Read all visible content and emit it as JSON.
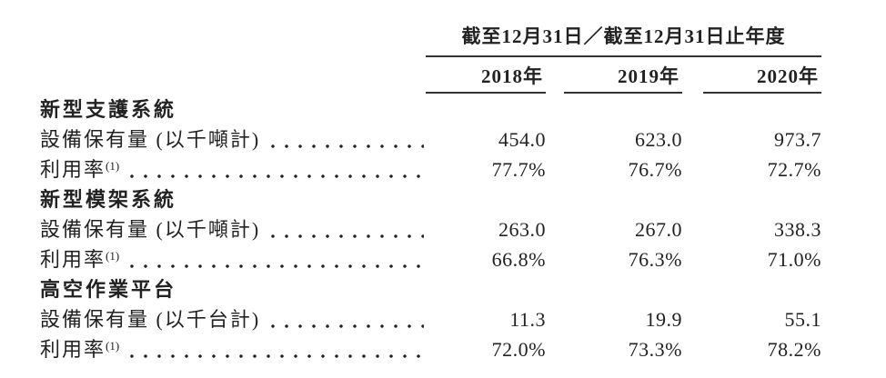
{
  "colors": {
    "ink": "#222222",
    "rule": "#333333",
    "background": "#ffffff"
  },
  "table": {
    "header": {
      "period_label": "截至12月31日／截至12月31日止年度",
      "columns": [
        "2018年",
        "2019年",
        "2020年"
      ]
    },
    "sections": [
      {
        "title": "新型支護系統",
        "rows": [
          {
            "label": "設備保有量 (以千噸計)",
            "sup": "",
            "values": [
              "454.0",
              "623.0",
              "973.7"
            ]
          },
          {
            "label": "利用率",
            "sup": "(1)",
            "values": [
              "77.7%",
              "76.7%",
              "72.7%"
            ]
          }
        ]
      },
      {
        "title": "新型模架系統",
        "rows": [
          {
            "label": "設備保有量 (以千噸計)",
            "sup": "",
            "values": [
              "263.0",
              "267.0",
              "338.3"
            ]
          },
          {
            "label": "利用率",
            "sup": "(1)",
            "values": [
              "66.8%",
              "76.3%",
              "71.0%"
            ]
          }
        ]
      },
      {
        "title": "高空作業平台",
        "rows": [
          {
            "label": "設備保有量 (以千台計)",
            "sup": "",
            "values": [
              "11.3",
              "19.9",
              "55.1"
            ]
          },
          {
            "label": "利用率",
            "sup": "(1)",
            "values": [
              "72.0%",
              "73.3%",
              "78.2%"
            ]
          }
        ]
      }
    ]
  }
}
